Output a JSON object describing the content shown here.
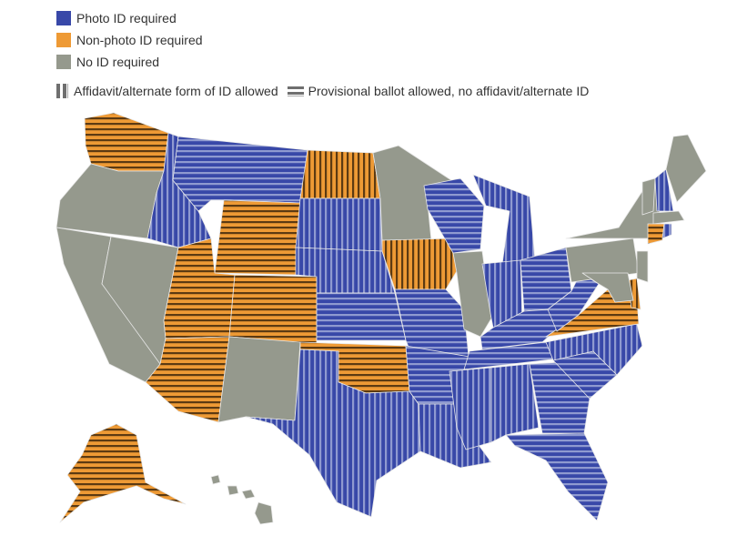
{
  "legend": {
    "items": [
      {
        "label": "Photo ID required",
        "color": "#3848a8",
        "icon": "square-swatch"
      },
      {
        "label": "Non-photo ID required",
        "color": "#ee9a35",
        "icon": "square-swatch"
      },
      {
        "label": "No ID required",
        "color": "#95998d",
        "icon": "square-swatch"
      }
    ],
    "patterns": [
      {
        "label": "Affidavit/alternate form of ID allowed",
        "icon": "vertical-stripes-icon"
      },
      {
        "label": "Provisional ballot allowed, no affidavit/alternate ID",
        "icon": "horizontal-stripes-icon"
      }
    ]
  },
  "colors": {
    "photo": "#3848a8",
    "photo_stripe": "#8f9ad0",
    "nonphoto": "#ee9a35",
    "nonphoto_stripe": "#5c3a12",
    "none": "#95998d",
    "border": "#e8e8e8"
  },
  "states": [
    {
      "id": "WA",
      "category": "nonphoto",
      "pattern": "horizontal"
    },
    {
      "id": "OR",
      "category": "none",
      "pattern": "solid"
    },
    {
      "id": "CA",
      "category": "none",
      "pattern": "solid"
    },
    {
      "id": "NV",
      "category": "none",
      "pattern": "solid"
    },
    {
      "id": "ID",
      "category": "photo",
      "pattern": "vertical"
    },
    {
      "id": "MT",
      "category": "photo",
      "pattern": "horizontal"
    },
    {
      "id": "WY",
      "category": "nonphoto",
      "pattern": "horizontal"
    },
    {
      "id": "UT",
      "category": "nonphoto",
      "pattern": "horizontal"
    },
    {
      "id": "AZ",
      "category": "nonphoto",
      "pattern": "horizontal"
    },
    {
      "id": "CO",
      "category": "nonphoto",
      "pattern": "horizontal"
    },
    {
      "id": "NM",
      "category": "none",
      "pattern": "solid"
    },
    {
      "id": "ND",
      "category": "nonphoto",
      "pattern": "vertical"
    },
    {
      "id": "SD",
      "category": "photo",
      "pattern": "vertical"
    },
    {
      "id": "NE",
      "category": "photo",
      "pattern": "vertical"
    },
    {
      "id": "KS",
      "category": "photo",
      "pattern": "horizontal"
    },
    {
      "id": "OK",
      "category": "nonphoto",
      "pattern": "horizontal"
    },
    {
      "id": "TX",
      "category": "photo",
      "pattern": "vertical"
    },
    {
      "id": "MN",
      "category": "none",
      "pattern": "solid"
    },
    {
      "id": "IA",
      "category": "nonphoto",
      "pattern": "vertical"
    },
    {
      "id": "MO",
      "category": "photo",
      "pattern": "horizontal"
    },
    {
      "id": "AR",
      "category": "photo",
      "pattern": "horizontal"
    },
    {
      "id": "LA",
      "category": "photo",
      "pattern": "vertical"
    },
    {
      "id": "WI",
      "category": "photo",
      "pattern": "horizontal"
    },
    {
      "id": "IL",
      "category": "none",
      "pattern": "solid"
    },
    {
      "id": "MI",
      "category": "photo",
      "pattern": "vertical"
    },
    {
      "id": "IN",
      "category": "photo",
      "pattern": "vertical"
    },
    {
      "id": "OH",
      "category": "photo",
      "pattern": "horizontal"
    },
    {
      "id": "KY",
      "category": "photo",
      "pattern": "horizontal"
    },
    {
      "id": "TN",
      "category": "photo",
      "pattern": "horizontal"
    },
    {
      "id": "MS",
      "category": "photo",
      "pattern": "vertical"
    },
    {
      "id": "AL",
      "category": "photo",
      "pattern": "vertical"
    },
    {
      "id": "GA",
      "category": "photo",
      "pattern": "horizontal"
    },
    {
      "id": "FL",
      "category": "photo",
      "pattern": "horizontal"
    },
    {
      "id": "SC",
      "category": "photo",
      "pattern": "horizontal"
    },
    {
      "id": "NC",
      "category": "photo",
      "pattern": "vertical"
    },
    {
      "id": "VA",
      "category": "nonphoto",
      "pattern": "horizontal"
    },
    {
      "id": "WV",
      "category": "photo",
      "pattern": "horizontal"
    },
    {
      "id": "PA",
      "category": "none",
      "pattern": "solid"
    },
    {
      "id": "NY",
      "category": "none",
      "pattern": "solid"
    },
    {
      "id": "VT",
      "category": "none",
      "pattern": "solid"
    },
    {
      "id": "NH",
      "category": "photo",
      "pattern": "vertical"
    },
    {
      "id": "ME",
      "category": "none",
      "pattern": "solid"
    },
    {
      "id": "MA",
      "category": "none",
      "pattern": "solid"
    },
    {
      "id": "CT",
      "category": "nonphoto",
      "pattern": "horizontal"
    },
    {
      "id": "RI",
      "category": "photo",
      "pattern": "vertical"
    },
    {
      "id": "NJ",
      "category": "none",
      "pattern": "solid"
    },
    {
      "id": "DE",
      "category": "nonphoto",
      "pattern": "vertical"
    },
    {
      "id": "MD",
      "category": "none",
      "pattern": "solid"
    },
    {
      "id": "AK",
      "category": "nonphoto",
      "pattern": "horizontal"
    },
    {
      "id": "HI",
      "category": "none",
      "pattern": "solid"
    }
  ]
}
